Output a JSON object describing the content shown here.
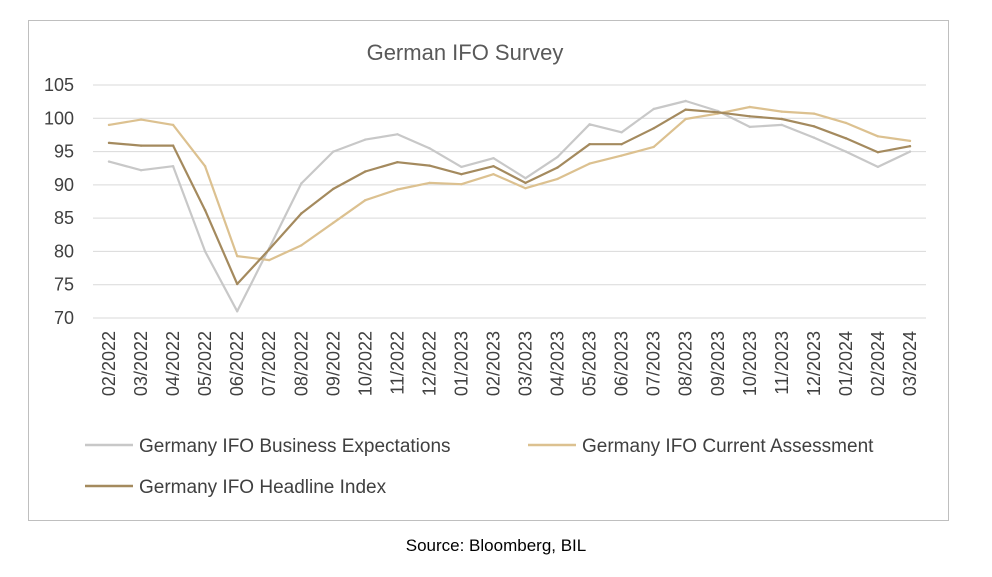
{
  "chart_data": {
    "type": "line",
    "title": "German IFO Survey",
    "xlabel": "",
    "ylabel": "",
    "ylim": [
      70,
      105
    ],
    "yticks": [
      70,
      75,
      80,
      85,
      90,
      95,
      100,
      105
    ],
    "grid": true,
    "legend_position": "bottom",
    "categories": [
      "02/2022",
      "03/2022",
      "04/2022",
      "05/2022",
      "06/2022",
      "07/2022",
      "08/2022",
      "09/2022",
      "10/2022",
      "11/2022",
      "12/2022",
      "01/2023",
      "02/2023",
      "03/2023",
      "04/2023",
      "05/2023",
      "06/2023",
      "07/2023",
      "08/2023",
      "09/2023",
      "10/2023",
      "11/2023",
      "12/2023",
      "01/2024",
      "02/2024",
      "03/2024"
    ],
    "series": [
      {
        "name": "Germany IFO Business Expectations",
        "color": "#c8c8c8",
        "values": [
          93.5,
          92.2,
          92.8,
          80.0,
          71.0,
          80.5,
          90.2,
          95.0,
          96.8,
          97.6,
          95.5,
          92.7,
          94.0,
          91.0,
          94.2,
          99.1,
          97.9,
          101.4,
          102.6,
          101.1,
          98.7,
          99.0,
          97.1,
          95.0,
          92.7,
          95.0
        ]
      },
      {
        "name": "Germany IFO Current Assessment",
        "color": "#dcc190",
        "values": [
          99.0,
          99.8,
          99.0,
          92.8,
          79.3,
          78.7,
          80.9,
          84.3,
          87.7,
          89.3,
          90.3,
          90.1,
          91.6,
          89.5,
          90.9,
          93.2,
          94.4,
          95.7,
          99.9,
          100.7,
          101.7,
          101.0,
          100.7,
          99.3,
          97.3,
          96.6
        ]
      },
      {
        "name": "Germany IFO Headline Index",
        "color": "#a48a5e",
        "values": [
          96.3,
          95.9,
          95.9,
          86.2,
          75.1,
          80.3,
          85.7,
          89.4,
          92.0,
          93.4,
          92.9,
          91.6,
          92.8,
          90.3,
          92.6,
          96.1,
          96.1,
          98.5,
          101.3,
          100.9,
          100.3,
          99.9,
          98.8,
          97.0,
          94.9,
          95.8
        ]
      }
    ],
    "source": "Source: Bloomberg, BIL"
  }
}
